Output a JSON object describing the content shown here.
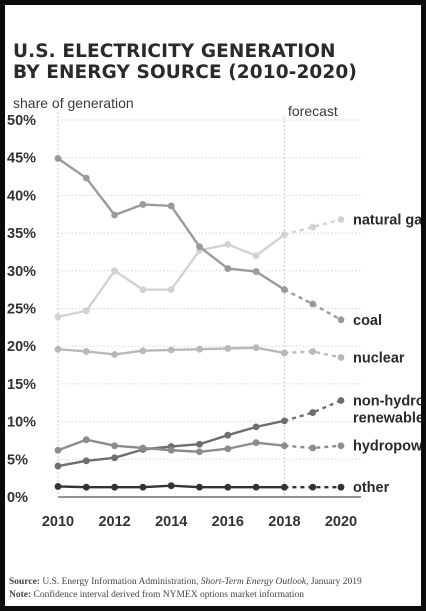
{
  "chart_data": {
    "type": "line",
    "title_line1": "U.S. ELECTRICITY GENERATION",
    "title_line2": "BY ENERGY SOURCE (2010-2020)",
    "ylabel": "share of generation",
    "forecast_label": "forecast",
    "forecast_start": 2018,
    "ylim": [
      0,
      50
    ],
    "xlim": [
      2010,
      2020
    ],
    "y_ticks": [
      0,
      5,
      10,
      15,
      20,
      25,
      30,
      35,
      40,
      45,
      50
    ],
    "y_tick_labels": [
      "0%",
      "5%",
      "10%",
      "15%",
      "20%",
      "25%",
      "30%",
      "35%",
      "40%",
      "45%",
      "50%"
    ],
    "x_ticks": [
      2010,
      2012,
      2014,
      2016,
      2018,
      2020
    ],
    "x_tick_labels": [
      "2010",
      "2012",
      "2014",
      "2016",
      "2018",
      "2020"
    ],
    "x": [
      2010,
      2011,
      2012,
      2013,
      2014,
      2015,
      2016,
      2017,
      2018,
      2019,
      2020
    ],
    "grid": "horizontal",
    "series": [
      {
        "name": "natural gas",
        "label_lines": [
          "natural gas"
        ],
        "color": "#d2d2d2",
        "values": [
          23.9,
          24.7,
          30.0,
          27.5,
          27.5,
          32.7,
          33.5,
          32.0,
          34.8,
          35.8,
          36.8
        ]
      },
      {
        "name": "coal",
        "label_lines": [
          "coal"
        ],
        "color": "#9a9a9a",
        "values": [
          44.9,
          42.3,
          37.4,
          38.8,
          38.6,
          33.2,
          30.3,
          29.9,
          27.5,
          25.6,
          23.5
        ]
      },
      {
        "name": "nuclear",
        "label_lines": [
          "nuclear"
        ],
        "color": "#b8b8b8",
        "values": [
          19.6,
          19.3,
          18.9,
          19.4,
          19.5,
          19.6,
          19.7,
          19.8,
          19.1,
          19.3,
          18.5
        ]
      },
      {
        "name": "non-hydro renewables",
        "label_lines": [
          "non-hydro",
          "renewables"
        ],
        "color": "#6e6e6e",
        "values": [
          4.1,
          4.8,
          5.2,
          6.3,
          6.7,
          7.0,
          8.2,
          9.3,
          10.1,
          11.2,
          12.8
        ]
      },
      {
        "name": "hydropower",
        "label_lines": [
          "hydropower"
        ],
        "color": "#8c8c8c",
        "values": [
          6.2,
          7.6,
          6.8,
          6.5,
          6.2,
          6.0,
          6.4,
          7.2,
          6.8,
          6.5,
          6.8
        ]
      },
      {
        "name": "other",
        "label_lines": [
          "other"
        ],
        "color": "#333333",
        "values": [
          1.4,
          1.3,
          1.3,
          1.3,
          1.5,
          1.3,
          1.3,
          1.3,
          1.3,
          1.3,
          1.3
        ]
      }
    ]
  },
  "footer": {
    "source_label": "Source:",
    "source_text": " U.S. Energy Information Administration, ",
    "source_pub": "Short-Term Energy Outlook",
    "source_date": ", January 2019",
    "note_label": "Note:",
    "note_text": " Confidence interval derived from NYMEX options market information"
  }
}
